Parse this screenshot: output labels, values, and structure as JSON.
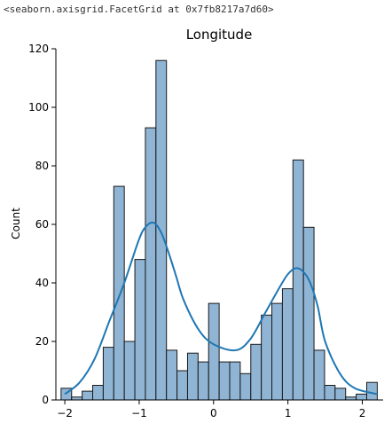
{
  "output_repr": "<seaborn.axisgrid.FacetGrid at 0x7fb8217a7d60>",
  "chart_data": {
    "type": "bar",
    "subtype": "histogram-with-kde",
    "title": "Longitude",
    "xlabel": "",
    "ylabel": "Count",
    "xlim": [
      -2.12,
      2.28
    ],
    "ylim": [
      0,
      120
    ],
    "xticks": [
      -2,
      -1,
      0,
      1,
      2
    ],
    "yticks": [
      0,
      20,
      40,
      60,
      80,
      100,
      120
    ],
    "bin_start": -2.05,
    "bin_width": 0.1417,
    "counts": [
      4,
      1,
      3,
      5,
      18,
      73,
      20,
      48,
      93,
      116,
      17,
      10,
      16,
      13,
      33,
      13,
      13,
      9,
      19,
      29,
      33,
      38,
      82,
      59,
      17,
      5,
      4,
      1,
      2,
      6
    ],
    "kde": {
      "x": [
        -2.0,
        -1.8,
        -1.6,
        -1.4,
        -1.2,
        -1.0,
        -0.9,
        -0.8,
        -0.7,
        -0.6,
        -0.5,
        -0.4,
        -0.2,
        0.0,
        0.3,
        0.5,
        0.7,
        0.9,
        1.0,
        1.1,
        1.2,
        1.3,
        1.4,
        1.5,
        1.7,
        1.9,
        2.2
      ],
      "y": [
        2,
        6,
        14,
        27,
        40,
        55,
        59.5,
        60.5,
        57,
        50,
        42,
        34,
        24,
        19,
        17,
        21,
        30,
        39,
        43,
        45,
        44,
        40,
        32,
        20,
        9,
        4,
        2
      ]
    },
    "bar_fill": "#8fb4d4",
    "bar_edge": "#1a1a1a",
    "kde_color": "#1f77b4",
    "grid": false
  }
}
